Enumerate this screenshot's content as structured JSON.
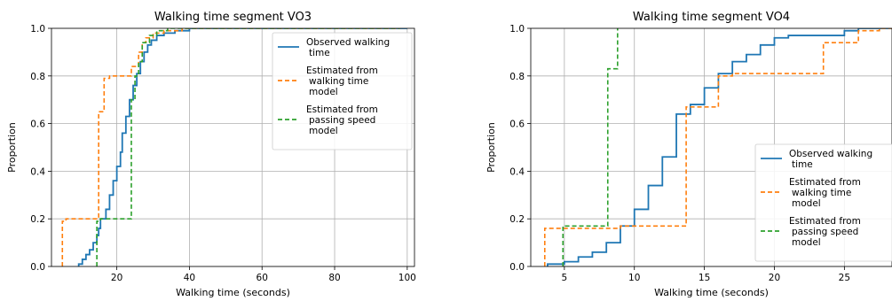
{
  "chart_data": [
    {
      "type": "step",
      "title": "Walking time segment VO3",
      "xlabel": "Walking time (seconds)",
      "ylabel": "Proportion",
      "xlim": [
        2,
        102
      ],
      "ylim": [
        0,
        1
      ],
      "xticks": [
        20,
        40,
        60,
        80,
        100
      ],
      "yticks": [
        0.0,
        0.2,
        0.4,
        0.6,
        0.8,
        1.0
      ],
      "grid": true,
      "legend_position": "upper-right",
      "series": [
        {
          "name": "Observed walking\ntime",
          "color": "#1f77b4",
          "dash": "solid",
          "points": [
            [
              9.5,
              0
            ],
            [
              9.5,
              0.01
            ],
            [
              10.5,
              0.01
            ],
            [
              10.5,
              0.03
            ],
            [
              11.5,
              0.03
            ],
            [
              11.5,
              0.05
            ],
            [
              12.5,
              0.05
            ],
            [
              12.5,
              0.07
            ],
            [
              13.5,
              0.07
            ],
            [
              13.5,
              0.1
            ],
            [
              14.5,
              0.1
            ],
            [
              14.5,
              0.13
            ],
            [
              15,
              0.13
            ],
            [
              15,
              0.16
            ],
            [
              15.5,
              0.16
            ],
            [
              15.5,
              0.2
            ],
            [
              17,
              0.2
            ],
            [
              17,
              0.24
            ],
            [
              18,
              0.24
            ],
            [
              18,
              0.3
            ],
            [
              19,
              0.3
            ],
            [
              19,
              0.36
            ],
            [
              20,
              0.36
            ],
            [
              20,
              0.42
            ],
            [
              21,
              0.42
            ],
            [
              21,
              0.48
            ],
            [
              21.5,
              0.48
            ],
            [
              21.5,
              0.56
            ],
            [
              22.5,
              0.56
            ],
            [
              22.5,
              0.63
            ],
            [
              23.5,
              0.63
            ],
            [
              23.5,
              0.7
            ],
            [
              24.5,
              0.7
            ],
            [
              24.5,
              0.76
            ],
            [
              25.5,
              0.76
            ],
            [
              25.5,
              0.81
            ],
            [
              26.5,
              0.81
            ],
            [
              26.5,
              0.86
            ],
            [
              27.5,
              0.86
            ],
            [
              27.5,
              0.9
            ],
            [
              28.5,
              0.9
            ],
            [
              28.5,
              0.93
            ],
            [
              29.5,
              0.93
            ],
            [
              29.5,
              0.95
            ],
            [
              31,
              0.95
            ],
            [
              31,
              0.97
            ],
            [
              33,
              0.97
            ],
            [
              33,
              0.98
            ],
            [
              36,
              0.98
            ],
            [
              36,
              0.99
            ],
            [
              40,
              0.99
            ],
            [
              40,
              1.0
            ],
            [
              100,
              1.0
            ]
          ]
        },
        {
          "name": "Estimated from\nwalking time\nmodel",
          "color": "#ff7f0e",
          "dash": "dashed",
          "points": [
            [
              5,
              0
            ],
            [
              5,
              0.19
            ],
            [
              6,
              0.19
            ],
            [
              6,
              0.2
            ],
            [
              15,
              0.2
            ],
            [
              15,
              0.65
            ],
            [
              16.5,
              0.65
            ],
            [
              16.5,
              0.79
            ],
            [
              18,
              0.79
            ],
            [
              18,
              0.8
            ],
            [
              24,
              0.8
            ],
            [
              24,
              0.84
            ],
            [
              26,
              0.84
            ],
            [
              26,
              0.9
            ],
            [
              27,
              0.9
            ],
            [
              27,
              0.94
            ],
            [
              28,
              0.94
            ],
            [
              28,
              0.96
            ],
            [
              30,
              0.96
            ],
            [
              30,
              0.98
            ],
            [
              33,
              0.98
            ],
            [
              33,
              0.99
            ],
            [
              38,
              0.99
            ],
            [
              38,
              1.0
            ],
            [
              98,
              1.0
            ]
          ]
        },
        {
          "name": "Estimated from\npassing speed\nmodel",
          "color": "#2ca02c",
          "dash": "dashed",
          "points": [
            [
              14.5,
              0
            ],
            [
              14.5,
              0.19
            ],
            [
              15.5,
              0.19
            ],
            [
              15.5,
              0.2
            ],
            [
              24,
              0.2
            ],
            [
              24,
              0.7
            ],
            [
              25,
              0.7
            ],
            [
              25,
              0.8
            ],
            [
              26,
              0.8
            ],
            [
              26,
              0.86
            ],
            [
              27,
              0.86
            ],
            [
              27,
              0.94
            ],
            [
              29,
              0.94
            ],
            [
              29,
              0.97
            ],
            [
              31,
              0.97
            ],
            [
              31,
              0.99
            ],
            [
              34,
              0.99
            ],
            [
              34,
              1.0
            ],
            [
              98,
              1.0
            ]
          ]
        }
      ]
    },
    {
      "type": "step",
      "title": "Walking time segment VO4",
      "xlabel": "Walking time (seconds)",
      "ylabel": "Proportion",
      "xlim": [
        2.6,
        28.4
      ],
      "ylim": [
        0,
        1
      ],
      "xticks": [
        5,
        10,
        15,
        20,
        25
      ],
      "yticks": [
        0.0,
        0.2,
        0.4,
        0.6,
        0.8,
        1.0
      ],
      "grid": true,
      "legend_position": "lower-right",
      "series": [
        {
          "name": "Observed walking\ntime",
          "color": "#1f77b4",
          "dash": "solid",
          "points": [
            [
              3.8,
              0
            ],
            [
              3.8,
              0.01
            ],
            [
              5,
              0.01
            ],
            [
              5,
              0.02
            ],
            [
              6,
              0.02
            ],
            [
              6,
              0.04
            ],
            [
              7,
              0.04
            ],
            [
              7,
              0.06
            ],
            [
              8,
              0.06
            ],
            [
              8,
              0.1
            ],
            [
              9,
              0.1
            ],
            [
              9,
              0.17
            ],
            [
              10,
              0.17
            ],
            [
              10,
              0.24
            ],
            [
              11,
              0.24
            ],
            [
              11,
              0.34
            ],
            [
              12,
              0.34
            ],
            [
              12,
              0.46
            ],
            [
              13,
              0.46
            ],
            [
              13,
              0.64
            ],
            [
              14,
              0.64
            ],
            [
              14,
              0.68
            ],
            [
              15,
              0.68
            ],
            [
              15,
              0.75
            ],
            [
              16,
              0.75
            ],
            [
              16,
              0.81
            ],
            [
              17,
              0.81
            ],
            [
              17,
              0.86
            ],
            [
              18,
              0.86
            ],
            [
              18,
              0.89
            ],
            [
              19,
              0.89
            ],
            [
              19,
              0.93
            ],
            [
              20,
              0.93
            ],
            [
              20,
              0.96
            ],
            [
              21,
              0.96
            ],
            [
              21,
              0.97
            ],
            [
              25,
              0.97
            ],
            [
              25,
              0.99
            ],
            [
              26,
              0.99
            ],
            [
              26,
              1.0
            ],
            [
              28.4,
              1.0
            ]
          ]
        },
        {
          "name": "Estimated from\nwalking time\nmodel",
          "color": "#ff7f0e",
          "dash": "dashed",
          "points": [
            [
              3.6,
              0
            ],
            [
              3.6,
              0.16
            ],
            [
              9,
              0.16
            ],
            [
              9,
              0.17
            ],
            [
              13.7,
              0.17
            ],
            [
              13.7,
              0.67
            ],
            [
              16,
              0.67
            ],
            [
              16,
              0.8
            ],
            [
              17,
              0.8
            ],
            [
              17,
              0.81
            ],
            [
              23.5,
              0.81
            ],
            [
              23.5,
              0.94
            ],
            [
              26,
              0.94
            ],
            [
              26,
              0.99
            ],
            [
              27.5,
              0.99
            ],
            [
              27.5,
              1.0
            ],
            [
              28.4,
              1.0
            ]
          ]
        },
        {
          "name": "Estimated from\npassing speed\nmodel",
          "color": "#2ca02c",
          "dash": "dashed",
          "points": [
            [
              4.9,
              0
            ],
            [
              4.9,
              0.17
            ],
            [
              8.1,
              0.17
            ],
            [
              8.1,
              0.83
            ],
            [
              8.8,
              0.83
            ],
            [
              8.8,
              1.0
            ]
          ]
        }
      ]
    }
  ]
}
